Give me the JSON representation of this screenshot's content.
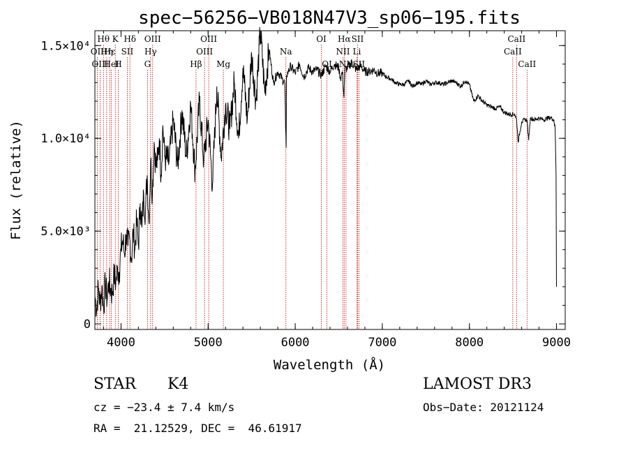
{
  "chart_data": {
    "type": "line",
    "title": "spec−56256−VB018N47V3_sp06−195.fits",
    "xlabel": "Wavelength (Å)",
    "ylabel": "Flux (relative)",
    "xlim": [
      3700,
      9100
    ],
    "ylim": [
      -300,
      15800
    ],
    "x_ticks": [
      {
        "value": 4000,
        "label": "4000"
      },
      {
        "value": 5000,
        "label": "5000"
      },
      {
        "value": 6000,
        "label": "6000"
      },
      {
        "value": 7000,
        "label": "7000"
      },
      {
        "value": 8000,
        "label": "8000"
      },
      {
        "value": 9000,
        "label": "9000"
      }
    ],
    "y_ticks": [
      {
        "value": 0,
        "label": "0"
      },
      {
        "value": 5000,
        "label": "5.0×10³"
      },
      {
        "value": 10000,
        "label": "1.0×10⁴"
      },
      {
        "value": 15000,
        "label": "1.5×10⁴"
      }
    ],
    "grid": false,
    "series": [
      {
        "name": "spectrum",
        "x": [
          3700,
          3720,
          3740,
          3760,
          3780,
          3800,
          3820,
          3840,
          3860,
          3880,
          3900,
          3920,
          3940,
          3960,
          3980,
          4000,
          4020,
          4040,
          4060,
          4080,
          4100,
          4120,
          4140,
          4160,
          4180,
          4200,
          4220,
          4240,
          4260,
          4280,
          4300,
          4320,
          4340,
          4360,
          4380,
          4400,
          4420,
          4440,
          4460,
          4480,
          4500,
          4550,
          4600,
          4650,
          4700,
          4750,
          4800,
          4850,
          4900,
          4950,
          5000,
          5050,
          5100,
          5150,
          5200,
          5250,
          5300,
          5350,
          5400,
          5450,
          5500,
          5550,
          5600,
          5650,
          5700,
          5750,
          5800,
          5850,
          5880,
          5890,
          5896,
          5900,
          5920,
          5950,
          6000,
          6050,
          6100,
          6150,
          6200,
          6250,
          6300,
          6350,
          6400,
          6450,
          6500,
          6520,
          6540,
          6560,
          6563,
          6570,
          6600,
          6650,
          6700,
          6750,
          6800,
          6850,
          6900,
          6950,
          7000,
          7050,
          7100,
          7150,
          7200,
          7250,
          7300,
          7350,
          7400,
          7450,
          7500,
          7550,
          7600,
          7650,
          7700,
          7750,
          7800,
          7850,
          7900,
          7950,
          8000,
          8050,
          8100,
          8150,
          8200,
          8250,
          8300,
          8350,
          8400,
          8450,
          8500,
          8520,
          8542,
          8560,
          8600,
          8640,
          8662,
          8680,
          8700,
          8750,
          8800,
          8850,
          8900,
          8940,
          8970,
          8985,
          8995,
          9000
        ],
        "y": [
          1500,
          800,
          1900,
          1100,
          2000,
          900,
          2200,
          1300,
          2300,
          1900,
          1600,
          2700,
          2200,
          3000,
          2800,
          4000,
          4500,
          3800,
          4800,
          4200,
          4600,
          3500,
          5000,
          4000,
          5600,
          4200,
          6500,
          5200,
          7000,
          6000,
          8000,
          5500,
          8800,
          7000,
          9800,
          8500,
          8800,
          10000,
          8000,
          10700,
          9000,
          8700,
          11000,
          8500,
          11500,
          9000,
          11800,
          8200,
          12000,
          8800,
          11000,
          7500,
          12800,
          9000,
          11800,
          10500,
          13000,
          10000,
          13800,
          11000,
          14500,
          12000,
          15800,
          12500,
          14800,
          13000,
          13600,
          13200,
          13000,
          10500,
          9500,
          13400,
          13600,
          13900,
          13500,
          14000,
          13300,
          13800,
          13600,
          13700,
          13400,
          13900,
          13600,
          14000,
          13800,
          13200,
          13600,
          12200,
          12800,
          13700,
          13800,
          14100,
          13700,
          13900,
          13600,
          13600,
          13700,
          13500,
          13500,
          13300,
          13200,
          13000,
          12900,
          12900,
          13100,
          12800,
          13000,
          12900,
          13100,
          12900,
          13000,
          13000,
          12900,
          13000,
          13100,
          13000,
          12800,
          13100,
          12900,
          12000,
          12300,
          12000,
          11800,
          11700,
          11600,
          11700,
          11400,
          11300,
          11300,
          11300,
          11000,
          9800,
          10900,
          11000,
          11000,
          9900,
          11100,
          11000,
          11100,
          11000,
          11100,
          11100,
          11000,
          10500,
          8000,
          2000
        ]
      }
    ],
    "spectral_lines": [
      {
        "label": "Hθ",
        "wavelength": 3798,
        "row": 0
      },
      {
        "label": "OII",
        "wavelength": 3727,
        "row": 1
      },
      {
        "label": "OIII",
        "wavelength": 3760,
        "row": 2
      },
      {
        "label": "K",
        "wavelength": 3934,
        "row": 0
      },
      {
        "label": "Hη",
        "wavelength": 3835,
        "row": 1
      },
      {
        "label": "HeI",
        "wavelength": 3889,
        "row": 2
      },
      {
        "label": "Hε",
        "wavelength": 3870,
        "row": 1
      },
      {
        "label": "SII",
        "wavelength": 4072,
        "row": 1
      },
      {
        "label": "H",
        "wavelength": 3968,
        "row": 2
      },
      {
        "label": "Hδ",
        "wavelength": 4102,
        "row": 0
      },
      {
        "label": "OIII",
        "wavelength": 4363,
        "row": 0
      },
      {
        "label": "Hγ",
        "wavelength": 4340,
        "row": 1
      },
      {
        "label": "G",
        "wavelength": 4304,
        "row": 2
      },
      {
        "label": "Hβ",
        "wavelength": 4861,
        "row": 2
      },
      {
        "label": "OIII",
        "wavelength": 5007,
        "row": 0
      },
      {
        "label": "OIII",
        "wavelength": 4959,
        "row": 1
      },
      {
        "label": "Mg",
        "wavelength": 5175,
        "row": 2
      },
      {
        "label": "Na",
        "wavelength": 5893,
        "row": 1
      },
      {
        "label": "OI",
        "wavelength": 6300,
        "row": 0
      },
      {
        "label": "OI",
        "wavelength": 6364,
        "row": 2
      },
      {
        "label": "Hα",
        "wavelength": 6563,
        "row": 0
      },
      {
        "label": "SII",
        "wavelength": 6716,
        "row": 0
      },
      {
        "label": "NII",
        "wavelength": 6548,
        "row": 1
      },
      {
        "label": "Li",
        "wavelength": 6708,
        "row": 1
      },
      {
        "label": "NII",
        "wavelength": 6583,
        "row": 2
      },
      {
        "label": "SII",
        "wavelength": 6731,
        "row": 2
      },
      {
        "label": "CaII",
        "wavelength": 8542,
        "row": 0
      },
      {
        "label": "CaII",
        "wavelength": 8498,
        "row": 1
      },
      {
        "label": "CaII",
        "wavelength": 8662,
        "row": 2
      }
    ]
  },
  "info": {
    "object_class": "STAR",
    "subclass": "K4",
    "redshift": "cz = −23.4 ± 7.4 km/s",
    "coords": "RA =  21.12529, DEC =  46.61917",
    "survey": "LAMOST DR3",
    "obs_date": "Obs−Date: 20121124"
  }
}
